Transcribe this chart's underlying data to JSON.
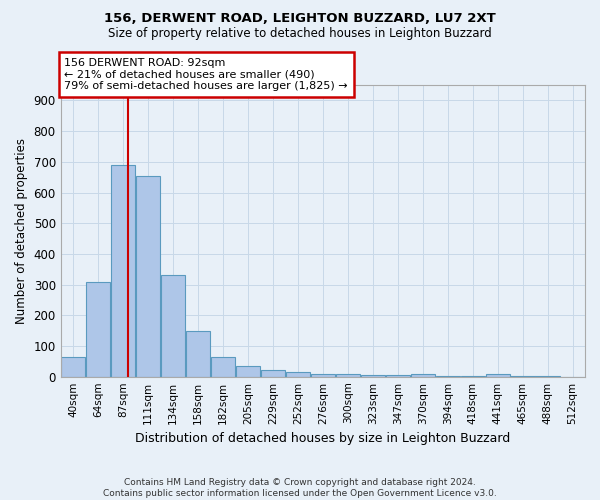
{
  "title1": "156, DERWENT ROAD, LEIGHTON BUZZARD, LU7 2XT",
  "title2": "Size of property relative to detached houses in Leighton Buzzard",
  "xlabel": "Distribution of detached houses by size in Leighton Buzzard",
  "ylabel": "Number of detached properties",
  "footnote": "Contains HM Land Registry data © Crown copyright and database right 2024.\nContains public sector information licensed under the Open Government Licence v3.0.",
  "bin_labels": [
    "40sqm",
    "64sqm",
    "87sqm",
    "111sqm",
    "134sqm",
    "158sqm",
    "182sqm",
    "205sqm",
    "229sqm",
    "252sqm",
    "276sqm",
    "300sqm",
    "323sqm",
    "347sqm",
    "370sqm",
    "394sqm",
    "418sqm",
    "441sqm",
    "465sqm",
    "488sqm",
    "512sqm"
  ],
  "bar_heights": [
    65,
    310,
    690,
    655,
    330,
    150,
    65,
    35,
    22,
    15,
    10,
    8,
    5,
    5,
    8,
    3,
    3,
    10,
    3,
    3,
    0
  ],
  "bar_color": "#aec6e8",
  "bar_edge_color": "#5a9abf",
  "bar_edge_width": 0.8,
  "grid_color": "#c8d8e8",
  "background_color": "#e8f0f8",
  "red_line_index": 2.21,
  "annotation_text": "156 DERWENT ROAD: 92sqm\n← 21% of detached houses are smaller (490)\n79% of semi-detached houses are larger (1,825) →",
  "annotation_box_color": "#ffffff",
  "annotation_box_edge": "#cc0000",
  "ylim": [
    0,
    950
  ],
  "yticks": [
    0,
    100,
    200,
    300,
    400,
    500,
    600,
    700,
    800,
    900
  ]
}
